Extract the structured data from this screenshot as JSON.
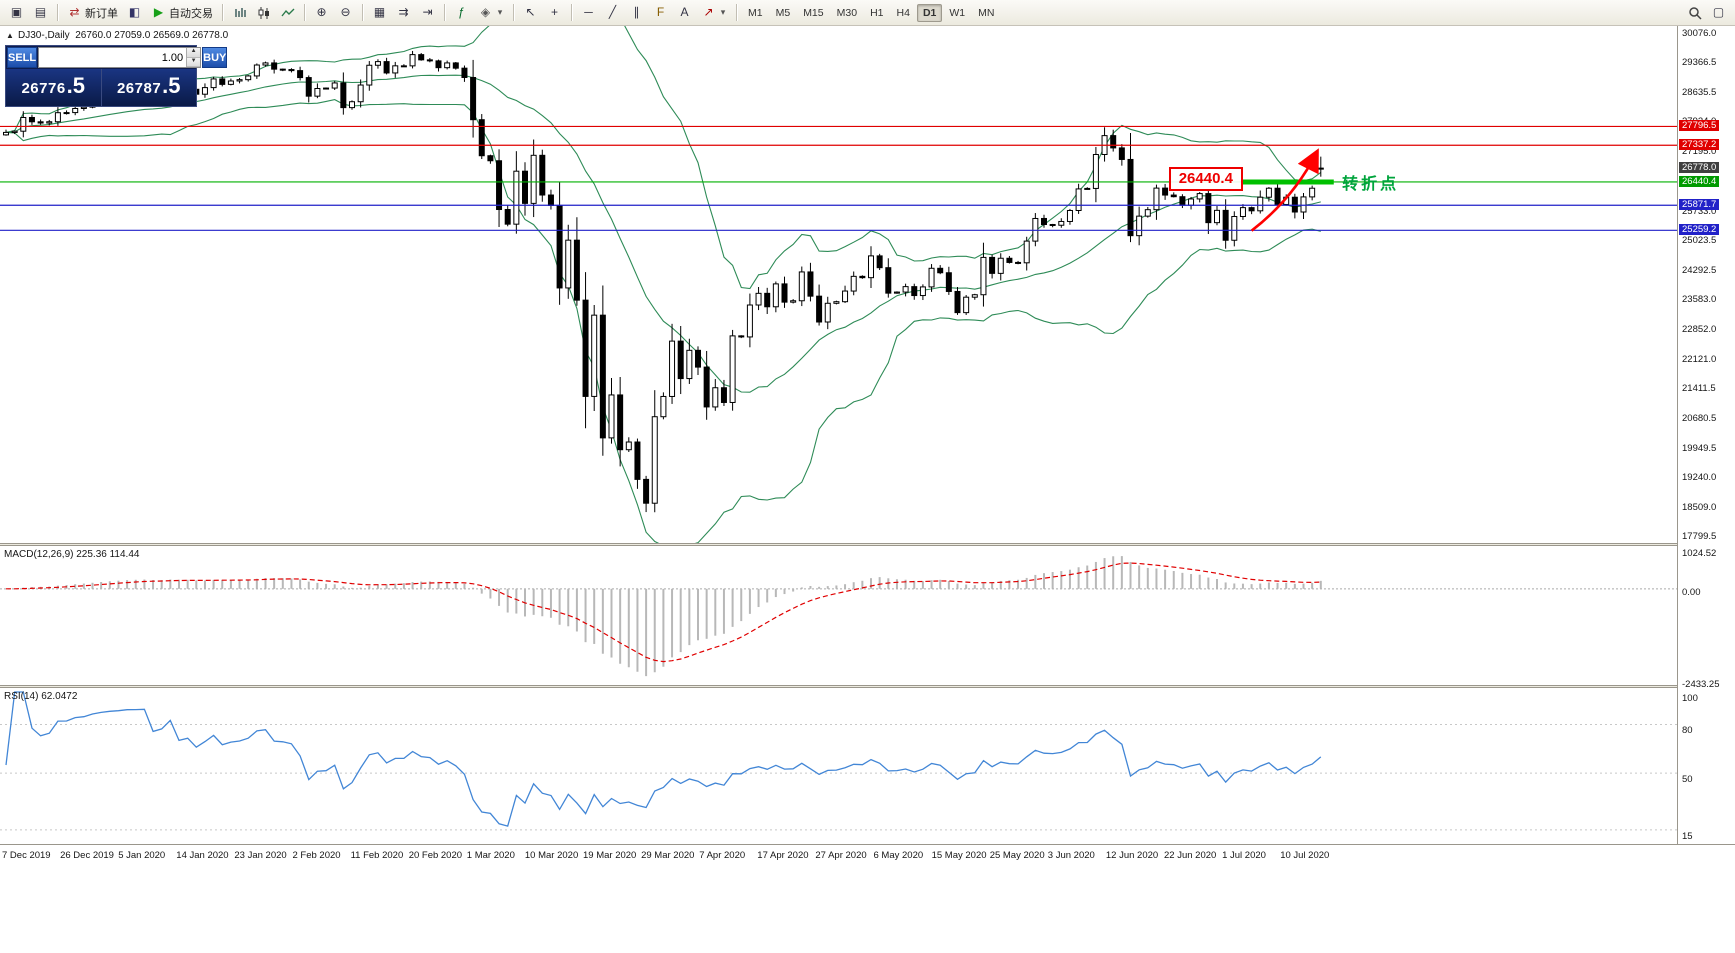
{
  "toolbar": {
    "items": [
      {
        "icon": "new-chart"
      },
      {
        "icon": "profiles"
      },
      {
        "sep": true
      },
      {
        "icon": "new-order",
        "label": "新订单"
      },
      {
        "icon": "chart-window"
      },
      {
        "icon": "autotrading",
        "label": "自动交易"
      },
      {
        "sep": true
      },
      {
        "icon": "chart-bars"
      },
      {
        "icon": "chart-candles"
      },
      {
        "icon": "chart-line"
      },
      {
        "sep": true
      },
      {
        "icon": "zoom-in"
      },
      {
        "icon": "zoom-out"
      },
      {
        "sep": true
      },
      {
        "icon": "tile-windows"
      },
      {
        "icon": "auto-scroll"
      },
      {
        "icon": "chart-shift"
      },
      {
        "sep": true
      },
      {
        "icon": "indicators"
      },
      {
        "icon": "objects-list",
        "dropdown": true
      },
      {
        "sep": true
      },
      {
        "icon": "cursor"
      },
      {
        "icon": "crosshair"
      },
      {
        "sep": true
      },
      {
        "icon": "hline"
      },
      {
        "icon": "trendline"
      },
      {
        "icon": "channel"
      },
      {
        "icon": "fibonacci"
      },
      {
        "icon": "text"
      },
      {
        "icon": "arrows",
        "dropdown": true
      }
    ],
    "timeframes": [
      "M1",
      "M5",
      "M15",
      "M30",
      "H1",
      "H4",
      "D1",
      "W1",
      "MN"
    ],
    "active_timeframe": "D1",
    "right_items": [
      {
        "icon": "search"
      },
      {
        "icon": "window-list"
      }
    ]
  },
  "trade_panel": {
    "sell_label": "SELL",
    "buy_label": "BUY",
    "volume": "1.00",
    "sell_price_main": "26776",
    "sell_price_frac": ".5",
    "buy_price_main": "26787",
    "buy_price_frac": ".5"
  },
  "chart_header": {
    "symbol": "DJ30-,Daily",
    "open": "26760.0",
    "high": "27059.0",
    "low": "26569.0",
    "close": "26778.0"
  },
  "indicators": {
    "macd_label": "MACD(12,26,9) 225.36 114.44",
    "rsi_label": "RSI(14) 62.0472"
  },
  "annotations": {
    "level_box": "26440.4",
    "turning_point": "转折点"
  },
  "axes": {
    "price_labels": [
      "30076.0",
      "29366.5",
      "28635.5",
      "27924.0",
      "27195.0",
      "25733.0",
      "25023.5",
      "24292.5",
      "23583.0",
      "22852.0",
      "22121.0",
      "21411.5",
      "20680.5",
      "19949.5",
      "19240.0",
      "18509.0",
      "17799.5"
    ],
    "line_labels": [
      {
        "text": "27796.5",
        "bg": "#e00000"
      },
      {
        "text": "27337.2",
        "bg": "#e00000"
      },
      {
        "text": "26778.0",
        "bg": "#404040"
      },
      {
        "text": "26440.4",
        "bg": "#009a00"
      },
      {
        "text": "25871.7",
        "bg": "#2121c8"
      },
      {
        "text": "25259.2",
        "bg": "#2121c8"
      }
    ],
    "macd_labels": [
      "1024.52",
      "0.00",
      "-2433.25"
    ],
    "rsi_labels": [
      "100",
      "80",
      "50",
      "15"
    ],
    "dates": [
      "7 Dec 2019",
      "26 Dec 2019",
      "5 Jan 2020",
      "14 Jan 2020",
      "23 Jan 2020",
      "2 Feb 2020",
      "11 Feb 2020",
      "20 Feb 2020",
      "1 Mar 2020",
      "10 Mar 2020",
      "19 Mar 2020",
      "29 Mar 2020",
      "7 Apr 2020",
      "17 Apr 2020",
      "27 Apr 2020",
      "6 May 2020",
      "15 May 2020",
      "25 May 2020",
      "3 Jun 2020",
      "12 Jun 2020",
      "22 Jun 2020",
      "1 Jul 2020",
      "10 Jul 2020"
    ]
  },
  "chart_data": {
    "type": "candlestick",
    "symbol": "DJ30-",
    "timeframe": "Daily",
    "ohlc_display": {
      "open": 26760.0,
      "high": 27059.0,
      "low": 26569.0,
      "close": 26778.0
    },
    "price_range": [
      17620,
      30250
    ],
    "closes": [
      27650,
      27680,
      28015,
      27910,
      27880,
      27911,
      28132,
      28135,
      28235,
      28267,
      28376,
      28455,
      28515,
      28551,
      28616,
      28621,
      28645,
      28462,
      28538,
      28869,
      28635,
      28704,
      28584,
      28745,
      28957,
      28824,
      28907,
      28939,
      29030,
      29297,
      29348,
      29196,
      29186,
      29160,
      28990,
      28536,
      28723,
      28734,
      28859,
      28256,
      28400,
      28808,
      29291,
      29380,
      29103,
      29277,
      29276,
      29551,
      29423,
      29398,
      29232,
      29348,
      29220,
      28992,
      27961,
      27081,
      26958,
      25767,
      25409,
      26703,
      25917,
      27091,
      26121,
      25865,
      23851,
      25018,
      23553,
      21201,
      23186,
      20188,
      21237,
      19899,
      20087,
      19174,
      18592,
      20705,
      21200,
      22552,
      21637,
      22327,
      21917,
      20944,
      21413,
      21053,
      22680,
      22654,
      23434,
      23719,
      23391,
      23950,
      23504,
      23538,
      24242,
      23650,
      23019,
      23476,
      23515,
      23775,
      24134,
      24102,
      24634,
      24346,
      23724,
      23750,
      23883,
      23665,
      23876,
      24331,
      24222,
      23765,
      23248,
      23625,
      23685,
      24597,
      24207,
      24576,
      24474,
      24465,
      24995,
      25548,
      25401,
      25383,
      25475,
      25743,
      26270,
      26282,
      27111,
      27572,
      27272,
      26990,
      25128,
      25605,
      25763,
      26290,
      26120,
      26080,
      25871,
      26025,
      26156,
      25446,
      25746,
      25016,
      25596,
      25813,
      25735,
      26067,
      26287,
      25890,
      26067,
      25706,
      26075,
      26287,
      26778
    ],
    "last_candle": {
      "open": 26760,
      "high": 27059,
      "low": 26569,
      "close": 26778
    },
    "levels": [
      {
        "price": 27796.5,
        "color": "#e00000"
      },
      {
        "price": 27337.2,
        "color": "#e00000"
      },
      {
        "price": 26440.4,
        "color": "#00b000"
      },
      {
        "price": 25871.7,
        "color": "#2121c8"
      },
      {
        "price": 25259.2,
        "color": "#2121c8"
      }
    ],
    "bollinger": {
      "period": 20,
      "deviation": 2,
      "color": "#2e8b57"
    },
    "macd": {
      "fast": 12,
      "slow": 26,
      "signal": 9,
      "main": 225.36,
      "signal_value": 114.44,
      "range": [
        -2433.25,
        1024.52
      ],
      "hist_color": "#b8b8b8",
      "signal_color": "#e00000"
    },
    "rsi": {
      "period": 14,
      "value": 62.0472,
      "range": [
        10,
        100
      ],
      "levels": [
        80,
        50,
        15
      ],
      "color": "#4286d6"
    },
    "highlight_segment": {
      "price": 26440.4,
      "from_index": 143,
      "to_index": 153.5,
      "color": "#00c000"
    },
    "arrow": {
      "from": [
        144,
        25250
      ],
      "to": [
        151.5,
        27150
      ],
      "color": "#ff0000"
    },
    "annotation_box": {
      "right_index": 143,
      "price": 26490
    },
    "turning_point_pos": {
      "index": 154,
      "price": 26490
    }
  }
}
